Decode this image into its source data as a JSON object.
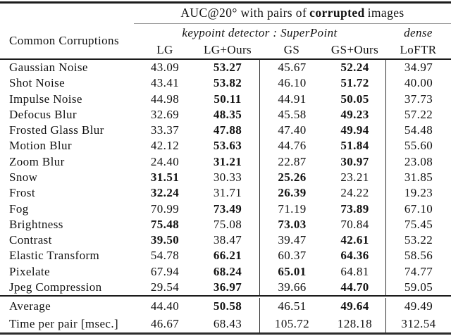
{
  "header": {
    "title_prefix": "AUC@20° with pairs of",
    "title_bold": "corrupted",
    "title_suffix": "images",
    "row_label": "Common Corruptions",
    "group_left": "keypoint detector : SuperPoint",
    "group_right": "dense",
    "columns": [
      "LG",
      "LG+Ours",
      "GS",
      "GS+Ours",
      "LoFTR"
    ]
  },
  "table": {
    "rows": [
      {
        "name": "Gaussian Noise",
        "values": [
          "43.09",
          "53.27",
          "45.67",
          "52.24",
          "34.97"
        ],
        "bold": [
          false,
          true,
          false,
          true,
          false
        ]
      },
      {
        "name": "Shot Noise",
        "values": [
          "43.41",
          "53.82",
          "46.10",
          "51.72",
          "40.00"
        ],
        "bold": [
          false,
          true,
          false,
          true,
          false
        ]
      },
      {
        "name": "Impulse Noise",
        "values": [
          "44.98",
          "50.11",
          "44.91",
          "50.05",
          "37.73"
        ],
        "bold": [
          false,
          true,
          false,
          true,
          false
        ]
      },
      {
        "name": "Defocus Blur",
        "values": [
          "32.69",
          "48.35",
          "45.58",
          "49.23",
          "57.22"
        ],
        "bold": [
          false,
          true,
          false,
          true,
          false
        ]
      },
      {
        "name": "Frosted Glass Blur",
        "values": [
          "33.37",
          "47.88",
          "47.40",
          "49.94",
          "54.48"
        ],
        "bold": [
          false,
          true,
          false,
          true,
          false
        ]
      },
      {
        "name": "Motion Blur",
        "values": [
          "42.12",
          "53.63",
          "44.76",
          "51.84",
          "55.60"
        ],
        "bold": [
          false,
          true,
          false,
          true,
          false
        ]
      },
      {
        "name": "Zoom Blur",
        "values": [
          "24.40",
          "31.21",
          "22.87",
          "30.97",
          "23.08"
        ],
        "bold": [
          false,
          true,
          false,
          true,
          false
        ]
      },
      {
        "name": "Snow",
        "values": [
          "31.51",
          "30.33",
          "25.26",
          "23.21",
          "31.85"
        ],
        "bold": [
          true,
          false,
          true,
          false,
          false
        ]
      },
      {
        "name": "Frost",
        "values": [
          "32.24",
          "31.71",
          "26.39",
          "24.22",
          "19.23"
        ],
        "bold": [
          true,
          false,
          true,
          false,
          false
        ]
      },
      {
        "name": "Fog",
        "values": [
          "70.99",
          "73.49",
          "71.19",
          "73.89",
          "67.10"
        ],
        "bold": [
          false,
          true,
          false,
          true,
          false
        ]
      },
      {
        "name": "Brightness",
        "values": [
          "75.48",
          "75.08",
          "73.03",
          "70.84",
          "75.45"
        ],
        "bold": [
          true,
          false,
          true,
          false,
          false
        ]
      },
      {
        "name": "Contrast",
        "values": [
          "39.50",
          "38.47",
          "39.47",
          "42.61",
          "53.22"
        ],
        "bold": [
          true,
          false,
          false,
          true,
          false
        ]
      },
      {
        "name": "Elastic Transform",
        "values": [
          "54.78",
          "66.21",
          "60.37",
          "64.36",
          "58.56"
        ],
        "bold": [
          false,
          true,
          false,
          true,
          false
        ]
      },
      {
        "name": "Pixelate",
        "values": [
          "67.94",
          "68.24",
          "65.01",
          "64.81",
          "74.77"
        ],
        "bold": [
          false,
          true,
          true,
          false,
          false
        ]
      },
      {
        "name": "Jpeg Compression",
        "values": [
          "29.54",
          "36.97",
          "39.66",
          "44.70",
          "59.05"
        ],
        "bold": [
          false,
          true,
          false,
          true,
          false
        ]
      }
    ],
    "footer": [
      {
        "name": "Average",
        "values": [
          "44.40",
          "50.58",
          "46.51",
          "49.64",
          "49.49"
        ],
        "bold": [
          false,
          true,
          false,
          true,
          false
        ]
      },
      {
        "name": "Time per pair [msec.]",
        "values": [
          "46.67",
          "68.43",
          "105.72",
          "128.18",
          "312.54"
        ],
        "bold": [
          false,
          false,
          false,
          false,
          false
        ]
      }
    ]
  }
}
